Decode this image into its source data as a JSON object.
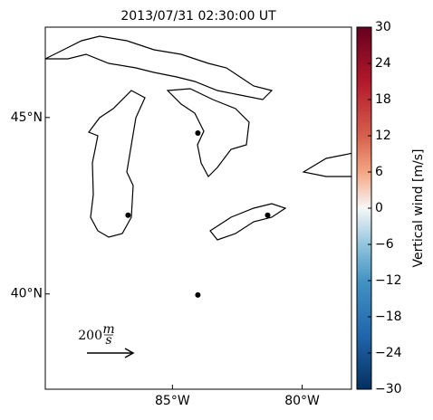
{
  "chart_data": {
    "type": "map",
    "title": "2013/07/31 02:30:00 UT",
    "xlim": [
      -89.9,
      -78.1
    ],
    "ylim": [
      37.3,
      47.56
    ],
    "xticks": [
      {
        "value": -85,
        "label": "85°W"
      },
      {
        "value": -80,
        "label": "80°W"
      }
    ],
    "yticks": [
      {
        "value": 45,
        "label": "45°N"
      },
      {
        "value": 40,
        "label": "40°N"
      }
    ],
    "series": [
      {
        "color": "#000000",
        "x": [
          -84.02,
          -86.71,
          -81.33,
          -84.02
        ],
        "y": [
          44.56,
          42.23,
          42.23,
          39.97
        ]
      }
    ],
    "arrow_label": {
      "number": "200",
      "numerator": "m",
      "denominator": "s"
    },
    "colorbar": {
      "label": "Vertical wind [m/s]",
      "lim": [
        -30,
        30
      ],
      "ticks": [
        30,
        24,
        18,
        12,
        6,
        0,
        {
          "value": -6,
          "label": "−6"
        },
        {
          "value": -12,
          "label": "−12"
        },
        {
          "value": -18,
          "label": "−18"
        },
        {
          "value": -24,
          "label": "−24"
        },
        {
          "value": -30,
          "label": "−30"
        }
      ]
    }
  }
}
